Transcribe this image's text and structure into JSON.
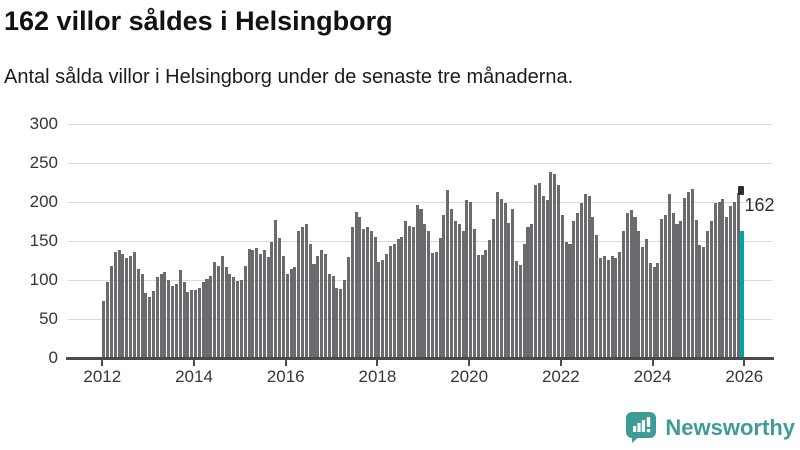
{
  "header": {
    "title": "162 villor såldes i Helsingborg",
    "subtitle": "Antal sålda villor i Helsingborg under de senaste tre månaderna."
  },
  "chart_data": {
    "type": "bar",
    "title": "162 villor såldes i Helsingborg",
    "subtitle": "Antal sålda villor i Helsingborg under de senaste tre månaderna.",
    "x_unit": "month",
    "x_first": "2012-01",
    "x_last": "2025-12",
    "xticks": [
      2012,
      2014,
      2016,
      2018,
      2020,
      2022,
      2024,
      2026
    ],
    "yticks": [
      0,
      50,
      100,
      150,
      200,
      250,
      300
    ],
    "ylim": [
      0,
      300
    ],
    "grid": true,
    "legend": "none",
    "bar_color": "#6b6b6f",
    "values": [
      73,
      97,
      118,
      136,
      138,
      133,
      128,
      130,
      136,
      114,
      107,
      83,
      78,
      85,
      103,
      108,
      110,
      100,
      92,
      94,
      112,
      97,
      84,
      87,
      87,
      90,
      97,
      101,
      105,
      123,
      118,
      130,
      116,
      108,
      103,
      98,
      100,
      118,
      139,
      138,
      141,
      133,
      138,
      129,
      148,
      176,
      153,
      130,
      108,
      114,
      117,
      162,
      168,
      172,
      146,
      120,
      130,
      138,
      133,
      108,
      105,
      90,
      88,
      100,
      129,
      167,
      187,
      180,
      165,
      167,
      162,
      155,
      123,
      125,
      133,
      143,
      146,
      152,
      155,
      175,
      169,
      168,
      196,
      191,
      171,
      162,
      134,
      136,
      153,
      183,
      215,
      191,
      175,
      171,
      162,
      202,
      200,
      165,
      132,
      132,
      138,
      151,
      178,
      213,
      204,
      198,
      173,
      191,
      124,
      119,
      146,
      168,
      171,
      222,
      224,
      207,
      202,
      238,
      235,
      221,
      183,
      149,
      146,
      175,
      186,
      198,
      210,
      207,
      180,
      158,
      128,
      130,
      125,
      130,
      128,
      136,
      162,
      186,
      189,
      180,
      162,
      142,
      152,
      122,
      116,
      121,
      178,
      183,
      210,
      186,
      171,
      175,
      205,
      213,
      216,
      176,
      144,
      142,
      162,
      175,
      198,
      200,
      203,
      180,
      194,
      200,
      211,
      162
    ],
    "highlight": {
      "index": 167,
      "value": 162,
      "label": "162",
      "color": "#00a3a4"
    }
  },
  "footer": {
    "brand": "Newsworthy",
    "brand_color": "#3e9c97",
    "logo_icon": "speech-bubble-bar-chart-icon"
  }
}
